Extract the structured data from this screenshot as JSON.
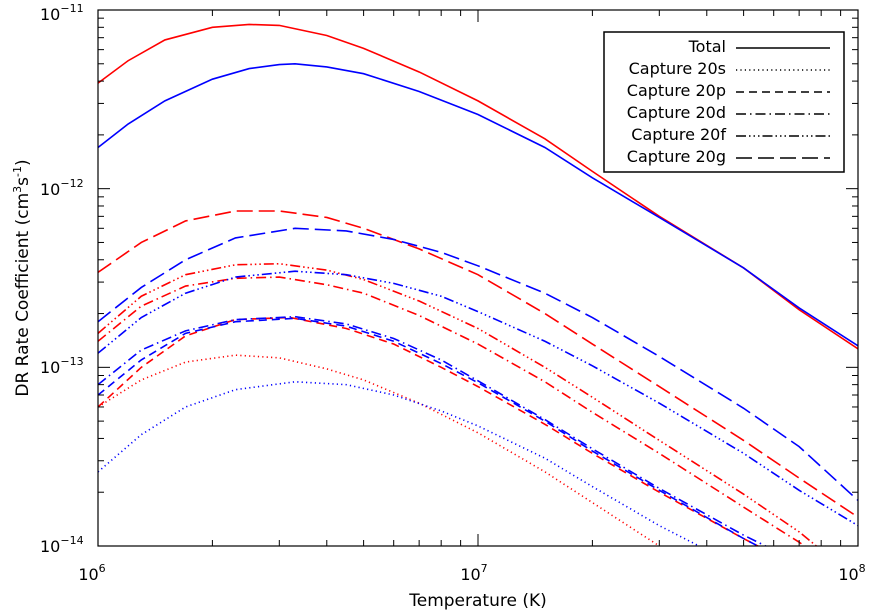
{
  "chart_data": {
    "type": "line",
    "title": "",
    "xlabel": "Temperature (K)",
    "ylabel_text": "DR Rate Coefficient (cm",
    "ylabel_unit_sup1": "3",
    "ylabel_unit_mid": "s",
    "ylabel_unit_sup2": "-1",
    "ylabel_close": ")",
    "x_scale": "log",
    "y_scale": "log",
    "xlim": [
      1000000,
      100000000
    ],
    "ylim": [
      1e-14,
      1e-11
    ],
    "x_ticks": [
      {
        "value": 1000000,
        "base": "10",
        "exp": "6"
      },
      {
        "value": 10000000,
        "base": "10",
        "exp": "7"
      },
      {
        "value": 100000000,
        "base": "10",
        "exp": "8"
      }
    ],
    "y_ticks": [
      {
        "value": 1e-14,
        "base": "10",
        "exp": "−14"
      },
      {
        "value": 1e-13,
        "base": "10",
        "exp": "−13"
      },
      {
        "value": 1e-12,
        "base": "10",
        "exp": "−12"
      },
      {
        "value": 1e-11,
        "base": "10",
        "exp": "−11"
      }
    ],
    "grid": false,
    "legend_position": "top-right",
    "legend": [
      {
        "label": "Total",
        "style": "solid"
      },
      {
        "label": "Capture 20s",
        "style": "dotted"
      },
      {
        "label": "Capture 20p",
        "style": "dashed"
      },
      {
        "label": "Capture 20d",
        "style": "dashdot"
      },
      {
        "label": "Capture 20f",
        "style": "dashdotdotdot"
      },
      {
        "label": "Capture 20g",
        "style": "longdash"
      }
    ],
    "colors": {
      "red": "#ff0000",
      "blue": "#0000ff"
    },
    "series": [
      {
        "color": "red",
        "style": "solid",
        "points": [
          [
            1000000.0,
            3.9e-12
          ],
          [
            1200000.0,
            5.2e-12
          ],
          [
            1500000.0,
            6.8e-12
          ],
          [
            2000000.0,
            8e-12
          ],
          [
            2500000.0,
            8.3e-12
          ],
          [
            3000000.0,
            8.2e-12
          ],
          [
            4000000.0,
            7.2e-12
          ],
          [
            5000000.0,
            6.1e-12
          ],
          [
            7000000.0,
            4.5e-12
          ],
          [
            10000000.0,
            3.1e-12
          ],
          [
            15000000.0,
            1.9e-12
          ],
          [
            20000000.0,
            1.25e-12
          ],
          [
            30000000.0,
            7e-13
          ],
          [
            50000000.0,
            3.6e-13
          ],
          [
            70000000.0,
            2.1e-13
          ],
          [
            100000000.0,
            1.27e-13
          ]
        ]
      },
      {
        "color": "blue",
        "style": "solid",
        "points": [
          [
            1000000.0,
            1.7e-12
          ],
          [
            1200000.0,
            2.3e-12
          ],
          [
            1500000.0,
            3.1e-12
          ],
          [
            2000000.0,
            4.1e-12
          ],
          [
            2500000.0,
            4.7e-12
          ],
          [
            3000000.0,
            4.95e-12
          ],
          [
            3300000.0,
            5e-12
          ],
          [
            4000000.0,
            4.8e-12
          ],
          [
            5000000.0,
            4.4e-12
          ],
          [
            7000000.0,
            3.5e-12
          ],
          [
            10000000.0,
            2.6e-12
          ],
          [
            15000000.0,
            1.7e-12
          ],
          [
            20000000.0,
            1.15e-12
          ],
          [
            30000000.0,
            6.9e-13
          ],
          [
            50000000.0,
            3.6e-13
          ],
          [
            70000000.0,
            2.15e-13
          ],
          [
            100000000.0,
            1.32e-13
          ]
        ]
      },
      {
        "color": "red",
        "style": "dotted",
        "points": [
          [
            1000000.0,
            6e-14
          ],
          [
            1300000.0,
            8.5e-14
          ],
          [
            1700000.0,
            1.07e-13
          ],
          [
            2300000.0,
            1.17e-13
          ],
          [
            3000000.0,
            1.13e-13
          ],
          [
            4000000.0,
            9.8e-14
          ],
          [
            5000000.0,
            8.5e-14
          ],
          [
            7000000.0,
            6.3e-14
          ],
          [
            10000000.0,
            4.3e-14
          ],
          [
            15000000.0,
            2.6e-14
          ],
          [
            20000000.0,
            1.75e-14
          ],
          [
            30000000.0,
            1e-14
          ],
          [
            32000000.0,
            9e-15
          ]
        ]
      },
      {
        "color": "blue",
        "style": "dotted",
        "points": [
          [
            1000000.0,
            2.6e-14
          ],
          [
            1300000.0,
            4.2e-14
          ],
          [
            1700000.0,
            6e-14
          ],
          [
            2300000.0,
            7.5e-14
          ],
          [
            3300000.0,
            8.3e-14
          ],
          [
            4500000.0,
            8e-14
          ],
          [
            6000000.0,
            7e-14
          ],
          [
            8000000.0,
            5.7e-14
          ],
          [
            10000000.0,
            4.7e-14
          ],
          [
            15000000.0,
            3.1e-14
          ],
          [
            20000000.0,
            2.15e-14
          ],
          [
            30000000.0,
            1.3e-14
          ],
          [
            40000000.0,
            9.5e-15
          ]
        ]
      },
      {
        "color": "red",
        "style": "dashed",
        "points": [
          [
            1000000.0,
            6e-14
          ],
          [
            1300000.0,
            1e-13
          ],
          [
            1700000.0,
            1.5e-13
          ],
          [
            2300000.0,
            1.85e-13
          ],
          [
            3200000.0,
            1.9e-13
          ],
          [
            4500000.0,
            1.65e-13
          ],
          [
            6000000.0,
            1.35e-13
          ],
          [
            8000000.0,
            1e-13
          ],
          [
            10000000.0,
            7.8e-14
          ],
          [
            15000000.0,
            4.8e-14
          ],
          [
            20000000.0,
            3.3e-14
          ],
          [
            30000000.0,
            2e-14
          ],
          [
            50000000.0,
            1.1e-14
          ],
          [
            60000000.0,
            9e-15
          ]
        ]
      },
      {
        "color": "blue",
        "style": "dashed",
        "points": [
          [
            1000000.0,
            7e-14
          ],
          [
            1300000.0,
            1.1e-13
          ],
          [
            1700000.0,
            1.55e-13
          ],
          [
            2300000.0,
            1.8e-13
          ],
          [
            3300000.0,
            1.88e-13
          ],
          [
            4500000.0,
            1.7e-13
          ],
          [
            6000000.0,
            1.4e-13
          ],
          [
            8000000.0,
            1.05e-13
          ],
          [
            10000000.0,
            8.2e-14
          ],
          [
            15000000.0,
            5e-14
          ],
          [
            20000000.0,
            3.4e-14
          ],
          [
            30000000.0,
            2.05e-14
          ],
          [
            50000000.0,
            1.1e-14
          ],
          [
            60000000.0,
            9e-15
          ]
        ]
      },
      {
        "color": "red",
        "style": "dashdot",
        "points": [
          [
            1000000.0,
            1.4e-13
          ],
          [
            1300000.0,
            2.2e-13
          ],
          [
            1700000.0,
            2.85e-13
          ],
          [
            2300000.0,
            3.15e-13
          ],
          [
            3000000.0,
            3.2e-13
          ],
          [
            4000000.0,
            2.9e-13
          ],
          [
            5000000.0,
            2.6e-13
          ],
          [
            7000000.0,
            1.95e-13
          ],
          [
            10000000.0,
            1.35e-13
          ],
          [
            15000000.0,
            8.3e-14
          ],
          [
            20000000.0,
            5.6e-14
          ],
          [
            30000000.0,
            3.3e-14
          ],
          [
            50000000.0,
            1.65e-14
          ],
          [
            70000000.0,
            1.05e-14
          ],
          [
            75000000.0,
            9.5e-15
          ]
        ]
      },
      {
        "color": "blue",
        "style": "dashdot",
        "points": [
          [
            1000000.0,
            8e-14
          ],
          [
            1300000.0,
            1.25e-13
          ],
          [
            1700000.0,
            1.6e-13
          ],
          [
            2300000.0,
            1.85e-13
          ],
          [
            3300000.0,
            1.92e-13
          ],
          [
            4500000.0,
            1.75e-13
          ],
          [
            6000000.0,
            1.45e-13
          ],
          [
            8000000.0,
            1.1e-13
          ],
          [
            10000000.0,
            8.4e-14
          ],
          [
            15000000.0,
            5.1e-14
          ],
          [
            20000000.0,
            3.5e-14
          ],
          [
            30000000.0,
            2.1e-14
          ],
          [
            50000000.0,
            1.15e-14
          ],
          [
            60000000.0,
            9.5e-15
          ]
        ]
      },
      {
        "color": "red",
        "style": "dashdotdotdot",
        "points": [
          [
            1000000.0,
            1.55e-13
          ],
          [
            1300000.0,
            2.5e-13
          ],
          [
            1700000.0,
            3.3e-13
          ],
          [
            2300000.0,
            3.75e-13
          ],
          [
            3000000.0,
            3.8e-13
          ],
          [
            4000000.0,
            3.5e-13
          ],
          [
            5000000.0,
            3.1e-13
          ],
          [
            7000000.0,
            2.35e-13
          ],
          [
            10000000.0,
            1.65e-13
          ],
          [
            15000000.0,
            1e-13
          ],
          [
            20000000.0,
            6.8e-14
          ],
          [
            30000000.0,
            3.9e-14
          ],
          [
            50000000.0,
            1.95e-14
          ],
          [
            70000000.0,
            1.2e-14
          ],
          [
            80000000.0,
            9.5e-15
          ]
        ]
      },
      {
        "color": "blue",
        "style": "dashdotdotdot",
        "points": [
          [
            1000000.0,
            1.2e-13
          ],
          [
            1300000.0,
            1.9e-13
          ],
          [
            1700000.0,
            2.6e-13
          ],
          [
            2300000.0,
            3.2e-13
          ],
          [
            3300000.0,
            3.45e-13
          ],
          [
            4500000.0,
            3.3e-13
          ],
          [
            6000000.0,
            2.95e-13
          ],
          [
            8000000.0,
            2.5e-13
          ],
          [
            10000000.0,
            2.05e-13
          ],
          [
            15000000.0,
            1.4e-13
          ],
          [
            20000000.0,
            1.02e-13
          ],
          [
            30000000.0,
            6.3e-14
          ],
          [
            50000000.0,
            3.3e-14
          ],
          [
            70000000.0,
            2.05e-14
          ],
          [
            100000000.0,
            1.3e-14
          ]
        ]
      },
      {
        "color": "red",
        "style": "longdash",
        "points": [
          [
            1000000.0,
            3.4e-13
          ],
          [
            1300000.0,
            5e-13
          ],
          [
            1700000.0,
            6.6e-13
          ],
          [
            2300000.0,
            7.5e-13
          ],
          [
            3000000.0,
            7.5e-13
          ],
          [
            4000000.0,
            6.9e-13
          ],
          [
            5000000.0,
            6e-13
          ],
          [
            7000000.0,
            4.6e-13
          ],
          [
            10000000.0,
            3.3e-13
          ],
          [
            15000000.0,
            2e-13
          ],
          [
            20000000.0,
            1.35e-13
          ],
          [
            30000000.0,
            7.8e-14
          ],
          [
            50000000.0,
            3.9e-14
          ],
          [
            70000000.0,
            2.4e-14
          ],
          [
            100000000.0,
            1.45e-14
          ]
        ]
      },
      {
        "color": "blue",
        "style": "longdash",
        "points": [
          [
            1000000.0,
            1.8e-13
          ],
          [
            1300000.0,
            2.8e-13
          ],
          [
            1700000.0,
            4e-13
          ],
          [
            2300000.0,
            5.3e-13
          ],
          [
            3300000.0,
            6e-13
          ],
          [
            4500000.0,
            5.8e-13
          ],
          [
            6000000.0,
            5.2e-13
          ],
          [
            8000000.0,
            4.4e-13
          ],
          [
            10000000.0,
            3.7e-13
          ],
          [
            15000000.0,
            2.6e-13
          ],
          [
            20000000.0,
            1.9e-13
          ],
          [
            30000000.0,
            1.15e-13
          ],
          [
            50000000.0,
            5.9e-14
          ],
          [
            70000000.0,
            3.6e-14
          ],
          [
            100000000.0,
            1.8e-14
          ]
        ]
      }
    ]
  }
}
